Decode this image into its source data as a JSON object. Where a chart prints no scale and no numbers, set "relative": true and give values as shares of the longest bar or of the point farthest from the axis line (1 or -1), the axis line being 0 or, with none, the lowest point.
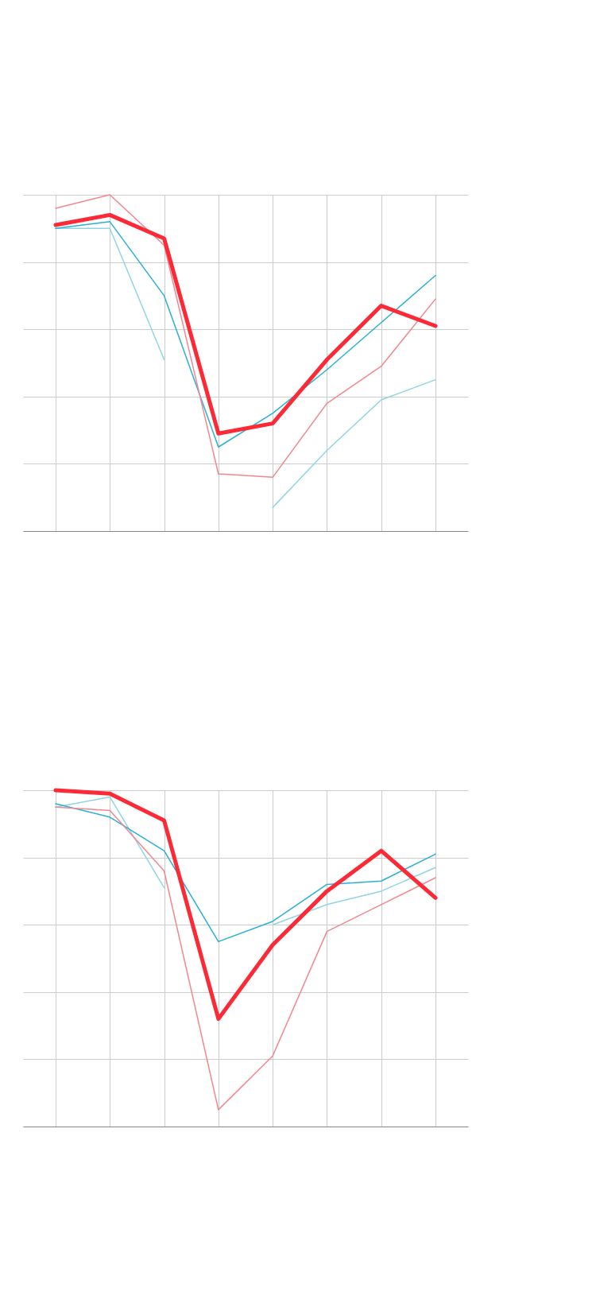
{
  "chart_data": [
    {
      "type": "line",
      "categories": [
        null,
        null,
        null,
        null,
        null,
        null,
        null,
        null
      ],
      "relative": true,
      "grid": true,
      "series": [
        {
          "color": "#fc2a36",
          "values": [
            0.91,
            0.94,
            0.87,
            0.29,
            0.32,
            0.51,
            0.67,
            0.61
          ]
        },
        {
          "color": "#f4868e",
          "values": [
            0.96,
            1,
            0.85,
            0.17,
            0.16,
            0.38,
            0.49,
            0.69
          ]
        },
        {
          "color": "#29b0d4",
          "values": [
            0.9,
            0.92,
            0.7,
            0.25,
            0.35,
            0.48,
            0.62,
            0.76
          ]
        },
        {
          "color": "#8fd5e6",
          "values": [
            0.9,
            0.9,
            0.51,
            null,
            0.07,
            0.24,
            0.39,
            0.45
          ]
        }
      ]
    },
    {
      "type": "line",
      "categories": [
        null,
        null,
        null,
        null,
        null,
        null,
        null,
        null
      ],
      "relative": true,
      "grid": true,
      "series": [
        {
          "color": "#fc2a36",
          "values": [
            1,
            0.99,
            0.91,
            0.32,
            0.54,
            0.7,
            0.82,
            0.68
          ]
        },
        {
          "color": "#f4868e",
          "values": [
            0.95,
            0.94,
            0.76,
            0.05,
            0.21,
            0.58,
            0.66,
            0.74
          ]
        },
        {
          "color": "#29b0d4",
          "values": [
            0.96,
            0.92,
            0.82,
            0.55,
            0.61,
            0.72,
            0.73,
            0.81
          ]
        },
        {
          "color": "#8fd5e6",
          "values": [
            0.95,
            0.98,
            0.71,
            null,
            0.6,
            0.66,
            0.7,
            0.77
          ]
        }
      ]
    }
  ]
}
